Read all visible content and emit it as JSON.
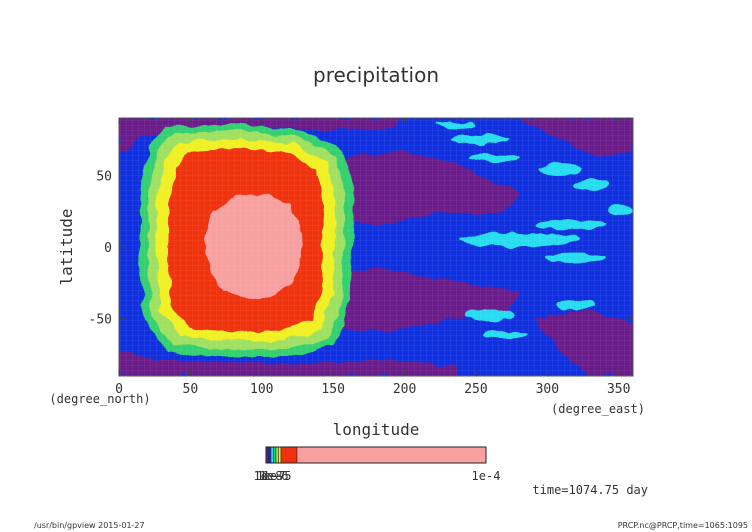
{
  "chart_data": {
    "type": "heatmap",
    "title": "precipitation",
    "xlabel": "longitude",
    "ylabel": "latitude",
    "x_unit": "(degree_east)",
    "y_unit": "(degree_north)",
    "xlim": [
      0,
      360
    ],
    "ylim": [
      -90,
      90
    ],
    "x_ticks": [
      0,
      50,
      100,
      150,
      200,
      250,
      300,
      350
    ],
    "y_ticks": [
      -50,
      0,
      50
    ],
    "time_label": "time=1074.75 day",
    "footer_left": "/usr/bin/gpview  2015-01-27",
    "footer_right": "PRCP.nc@PRCP,time=1065:1095",
    "colorbar": {
      "colors": [
        "#6a1a8a",
        "#1030e0",
        "#28dcf0",
        "#30d070",
        "#a0e060",
        "#f0f020",
        "#f03010",
        "#f8a0a0"
      ],
      "labels": [
        "1e-8",
        "1e-7",
        "1e-6",
        "1e-5",
        "1e-4"
      ],
      "left_label": "1e-8",
      "right_label": "1e-4"
    },
    "features": [
      {
        "name": "heavy-precip-core",
        "lon": 95,
        "lat": 0,
        "level": "1e-4"
      },
      {
        "name": "precip-ring",
        "lon": 100,
        "lat": 0,
        "lon_extent": [
          20,
          165
        ],
        "lat_extent": [
          -72,
          72
        ]
      },
      {
        "name": "dry-tongue-north",
        "lon": 210,
        "lat": 35
      },
      {
        "name": "dry-tongue-south",
        "lon": 210,
        "lat": -35
      },
      {
        "name": "wave-band",
        "lon": 270,
        "lat": 0
      }
    ]
  }
}
